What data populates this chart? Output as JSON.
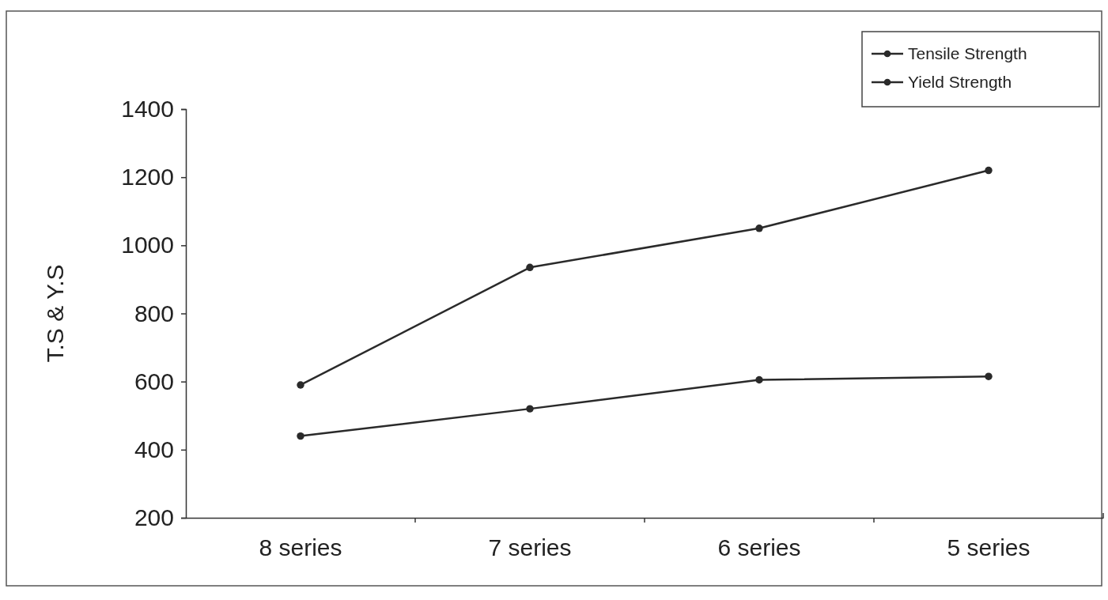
{
  "chart_data": {
    "type": "line",
    "ylabel": "T.S & Y.S",
    "categories": [
      "8 series",
      "7 series",
      "6 series",
      "5 series"
    ],
    "series": [
      {
        "name": "Tensile Strength",
        "color": "#2a2a2a",
        "values": [
          590,
          935,
          1050,
          1220
        ]
      },
      {
        "name": "Yield Strength",
        "color": "#2a2a2a",
        "values": [
          440,
          520,
          605,
          615
        ]
      }
    ],
    "ylim": [
      200,
      1400
    ],
    "yticks": [
      200,
      400,
      600,
      800,
      1000,
      1200,
      1400
    ],
    "grid": false,
    "legend": "top right",
    "marker": "circle",
    "line_style": "solid"
  }
}
